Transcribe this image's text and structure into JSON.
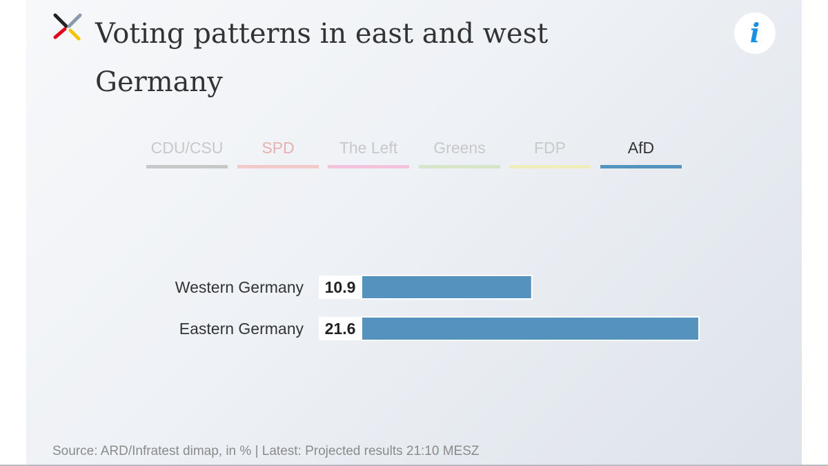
{
  "title": "Voting patterns in east and west Germany",
  "info_button": {
    "icon": "info-icon",
    "glyph": "i"
  },
  "logo": {
    "colors": [
      "#222222",
      "#e2001a",
      "#f5c400",
      "#8a9bb0"
    ]
  },
  "tabs": [
    {
      "label": "CDU/CSU",
      "color": "#c7c7c7",
      "text_color": "#c8c8c8",
      "active": false
    },
    {
      "label": "SPD",
      "color": "#f3c9c9",
      "text_color": "#e8b0b0",
      "active": false
    },
    {
      "label": "The Left",
      "color": "#f4c2dc",
      "text_color": "#c8c8c8",
      "active": false
    },
    {
      "label": "Greens",
      "color": "#d7e6c8",
      "text_color": "#c8c8c8",
      "active": false
    },
    {
      "label": "FDP",
      "color": "#efedb9",
      "text_color": "#c8c8c8",
      "active": false
    },
    {
      "label": "AfD",
      "color": "#5592bd",
      "text_color": "#333333",
      "active": true
    }
  ],
  "chart_data": {
    "type": "bar",
    "orientation": "horizontal",
    "party": "AfD",
    "categories": [
      "Western Germany",
      "Eastern Germany"
    ],
    "values": [
      10.9,
      21.6
    ],
    "value_labels": [
      "10.9",
      "21.6"
    ],
    "xlim": [
      0,
      21.6
    ],
    "bar_color": "#5592bd",
    "unit": "%"
  },
  "source": "Source: ARD/Infratest dimap, in % | Latest: Projected results 21:10 MESZ"
}
